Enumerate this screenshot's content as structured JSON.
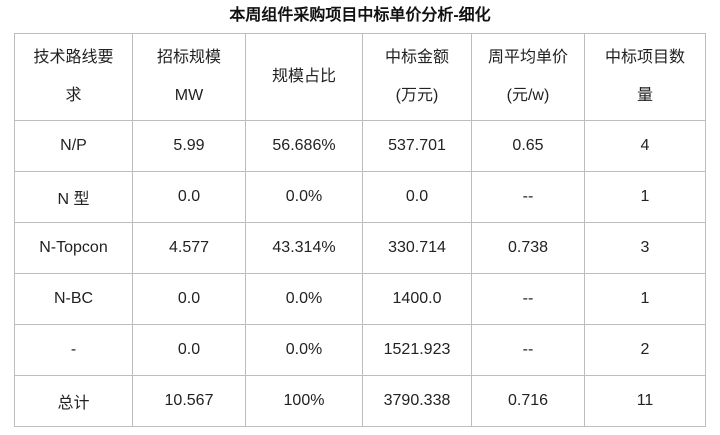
{
  "title": "本周组件采购项目中标单价分析-细化",
  "columns": [
    "技术路线要\n求",
    "招标规模\nMW",
    "规模占比",
    "中标金额\n(万元)",
    "周平均单价\n(元/w)",
    "中标项目数\n量"
  ],
  "rows": [
    [
      "N/P",
      "5.99",
      "56.686%",
      "537.701",
      "0.65",
      "4"
    ],
    [
      "N 型",
      "0.0",
      "0.0%",
      "0.0",
      "--",
      "1"
    ],
    [
      "N-Topcon",
      "4.577",
      "43.314%",
      "330.714",
      "0.738",
      "3"
    ],
    [
      "N-BC",
      "0.0",
      "0.0%",
      "1400.0",
      "--",
      "1"
    ],
    [
      "-",
      "0.0",
      "0.0%",
      "1521.923",
      "--",
      "2"
    ],
    [
      "总计",
      "10.567",
      "100%",
      "3790.338",
      "0.716",
      "11"
    ]
  ]
}
